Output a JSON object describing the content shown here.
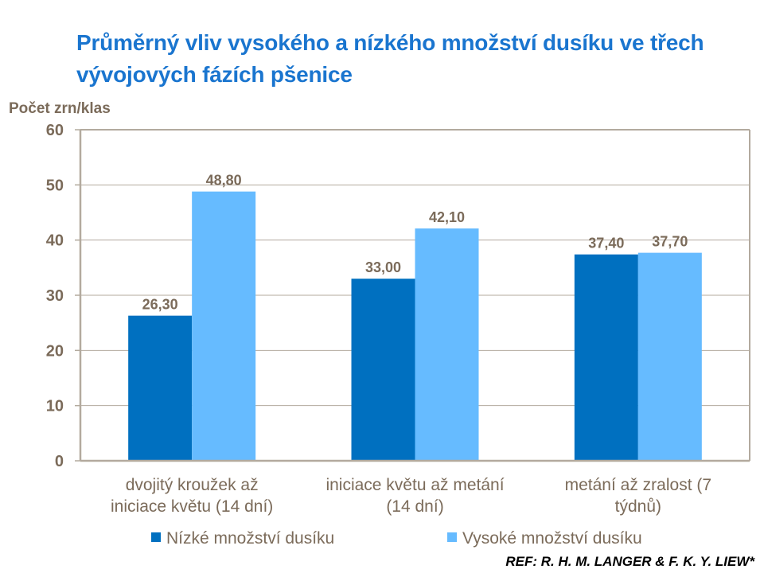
{
  "chart_data": {
    "type": "bar",
    "title": "Průměrný vliv vysokého a nízkého množství dusíku ve třech vývojových  fázích pšenice",
    "ylabel": "Počet zrn/klas",
    "xlabel": "",
    "ylim": [
      0,
      60
    ],
    "yticks": [
      0,
      10,
      20,
      30,
      40,
      50,
      60
    ],
    "grid": true,
    "legend": "bottom",
    "categories": [
      [
        "dvojitý kroužek až",
        "iniciace květu (14 dní)"
      ],
      [
        "iniciace květu až metání",
        "(14 dní)"
      ],
      [
        "metání až zralost (7",
        "týdnů)"
      ]
    ],
    "series": [
      {
        "name": "Nízké množství dusíku",
        "color": "#0070c0",
        "values": [
          26.3,
          33.0,
          37.4
        ],
        "labels": [
          "26,30",
          "33,00",
          "37,40"
        ]
      },
      {
        "name": "Vysoké množství dusíku",
        "color": "#66bbff",
        "values": [
          48.8,
          42.1,
          37.7
        ],
        "labels": [
          "48,80",
          "42,10",
          "37,70"
        ]
      }
    ]
  },
  "reference": "REF: R. H. M. LANGER & F. K. Y. LIEW*"
}
